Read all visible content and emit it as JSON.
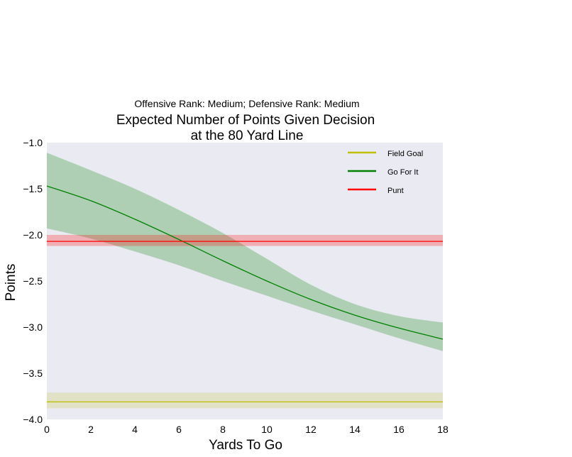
{
  "chart_data": {
    "type": "line",
    "suptitle": "Offensive Rank: Medium; Defensive Rank: Medium",
    "title_line1": "Expected Number of Points Given Decision",
    "title_line2": "at the 80 Yard Line",
    "xlabel": "Yards To Go",
    "ylabel": "Points",
    "xlim": [
      0,
      18
    ],
    "ylim": [
      -4.0,
      -1.0
    ],
    "xticks": [
      0,
      2,
      4,
      6,
      8,
      10,
      12,
      14,
      16,
      18
    ],
    "xtick_labels": [
      "0",
      "2",
      "4",
      "6",
      "8",
      "10",
      "12",
      "14",
      "16",
      "18"
    ],
    "yticks": [
      -1.0,
      -1.5,
      -2.0,
      -2.5,
      -3.0,
      -3.5,
      -4.0
    ],
    "ytick_labels": [
      "−1.0",
      "−1.5",
      "−2.0",
      "−2.5",
      "−3.0",
      "−3.5",
      "−4.0"
    ],
    "grid": false,
    "background": "#eaeaf2",
    "legend_position": "top-right",
    "x": [
      0,
      2,
      4,
      6,
      8,
      10,
      12,
      14,
      16,
      18
    ],
    "series": [
      {
        "name": "Field Goal",
        "color": "#bfbf00",
        "values": [
          -3.81,
          -3.81,
          -3.81,
          -3.81,
          -3.81,
          -3.81,
          -3.81,
          -3.81,
          -3.81,
          -3.81
        ],
        "lower": [
          -3.88,
          -3.88,
          -3.88,
          -3.88,
          -3.88,
          -3.88,
          -3.88,
          -3.88,
          -3.88,
          -3.88
        ],
        "upper": [
          -3.71,
          -3.71,
          -3.71,
          -3.71,
          -3.71,
          -3.71,
          -3.71,
          -3.71,
          -3.71,
          -3.71
        ]
      },
      {
        "name": "Go For It",
        "color": "#008000",
        "values": [
          -1.47,
          -1.63,
          -1.83,
          -2.05,
          -2.28,
          -2.5,
          -2.7,
          -2.87,
          -3.01,
          -3.13
        ],
        "lower": [
          -1.93,
          -2.04,
          -2.18,
          -2.33,
          -2.5,
          -2.66,
          -2.82,
          -2.97,
          -3.12,
          -3.26
        ],
        "upper": [
          -1.11,
          -1.3,
          -1.5,
          -1.73,
          -1.98,
          -2.26,
          -2.54,
          -2.75,
          -2.88,
          -2.95
        ]
      },
      {
        "name": "Punt",
        "color": "#ff0000",
        "values": [
          -2.07,
          -2.07,
          -2.07,
          -2.07,
          -2.07,
          -2.07,
          -2.07,
          -2.07,
          -2.07,
          -2.07
        ],
        "lower": [
          -2.12,
          -2.12,
          -2.12,
          -2.12,
          -2.12,
          -2.12,
          -2.12,
          -2.12,
          -2.12,
          -2.12
        ],
        "upper": [
          -2.0,
          -2.0,
          -2.0,
          -2.0,
          -2.0,
          -2.0,
          -2.0,
          -2.0,
          -2.0,
          -2.0
        ]
      }
    ]
  }
}
